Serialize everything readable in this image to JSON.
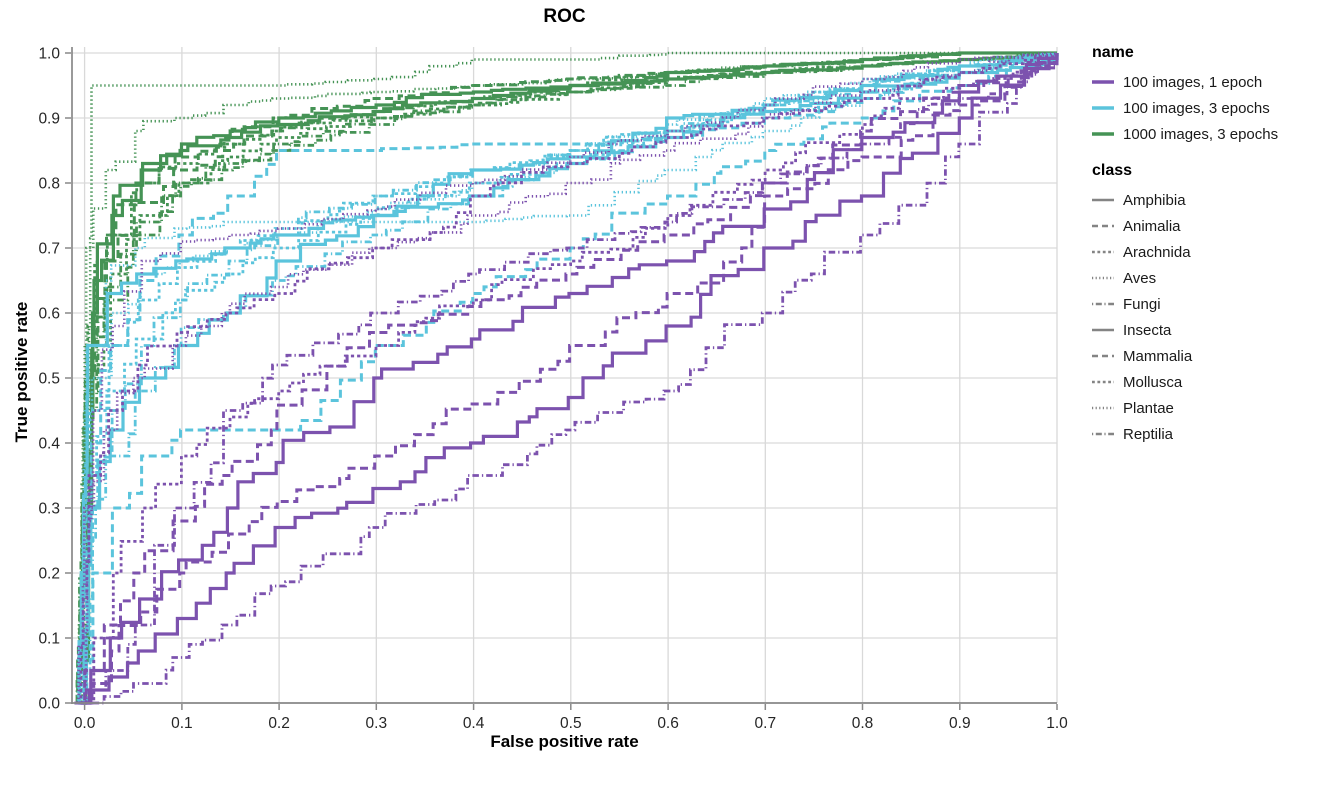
{
  "chart_data": {
    "type": "line",
    "title": "ROC",
    "xlabel": "False positive rate",
    "ylabel": "True positive rate",
    "xlim": [
      0,
      1
    ],
    "ylim": [
      0,
      1
    ],
    "xticks": [
      0.0,
      0.1,
      0.2,
      0.3,
      0.4,
      0.5,
      0.6,
      0.7,
      0.8,
      0.9,
      1.0
    ],
    "yticks": [
      0.0,
      0.1,
      0.2,
      0.3,
      0.4,
      0.5,
      0.6,
      0.7,
      0.8,
      0.9,
      1.0
    ],
    "grid": true,
    "grid_color": "#d9d9d9",
    "axis_color": "#888888",
    "legend": {
      "name_title": "name",
      "name_entries": [
        {
          "label": "100 images, 1 epoch",
          "color": "#7c52ae"
        },
        {
          "label": "100 images, 3 epochs",
          "color": "#5bc4dc"
        },
        {
          "label": "1000 images, 3 epochs",
          "color": "#459355"
        }
      ],
      "class_title": "class",
      "class_color": "#848484",
      "class_entries": [
        {
          "label": "Amphibia",
          "dash": "solid"
        },
        {
          "label": "Animalia",
          "dash": "dashed"
        },
        {
          "label": "Arachnida",
          "dash": "dash2"
        },
        {
          "label": "Aves",
          "dash": "dotted"
        },
        {
          "label": "Fungi",
          "dash": "dashdot"
        },
        {
          "label": "Insecta",
          "dash": "solid"
        },
        {
          "label": "Mammalia",
          "dash": "dashed"
        },
        {
          "label": "Mollusca",
          "dash": "dash2"
        },
        {
          "label": "Plantae",
          "dash": "dotted"
        },
        {
          "label": "Reptilia",
          "dash": "dashdot"
        }
      ]
    },
    "fpr_grid": [
      0,
      0.01,
      0.03,
      0.06,
      0.1,
      0.15,
      0.2,
      0.3,
      0.4,
      0.5,
      0.6,
      0.7,
      0.8,
      0.9,
      1
    ],
    "series": [
      {
        "name": "1000 images, 3 epochs",
        "class": "Amphibia",
        "color": "#459355",
        "dash": "solid",
        "tpr": [
          0,
          0.6,
          0.75,
          0.82,
          0.85,
          0.87,
          0.89,
          0.91,
          0.93,
          0.95,
          0.96,
          0.97,
          0.98,
          0.99,
          1
        ]
      },
      {
        "name": "1000 images, 3 epochs",
        "class": "Animalia",
        "color": "#459355",
        "dash": "dashed",
        "tpr": [
          0,
          0.55,
          0.72,
          0.8,
          0.84,
          0.87,
          0.9,
          0.93,
          0.95,
          0.96,
          0.97,
          0.98,
          0.99,
          1,
          1
        ]
      },
      {
        "name": "1000 images, 3 epochs",
        "class": "Arachnida",
        "color": "#459355",
        "dash": "dash2",
        "tpr": [
          0,
          0.58,
          0.72,
          0.8,
          0.83,
          0.86,
          0.88,
          0.91,
          0.93,
          0.95,
          0.97,
          0.98,
          0.99,
          1,
          1
        ]
      },
      {
        "name": "1000 images, 3 epochs",
        "class": "Aves",
        "color": "#459355",
        "dash": "dotted",
        "tpr": [
          0,
          0.7,
          0.82,
          0.88,
          0.9,
          0.92,
          0.93,
          0.94,
          0.95,
          0.96,
          0.97,
          0.98,
          0.99,
          1,
          1
        ]
      },
      {
        "name": "1000 images, 3 epochs",
        "class": "Fungi",
        "color": "#459355",
        "dash": "dashdot",
        "tpr": [
          0,
          0.45,
          0.62,
          0.72,
          0.78,
          0.82,
          0.85,
          0.89,
          0.92,
          0.94,
          0.96,
          0.97,
          0.98,
          0.99,
          1
        ]
      },
      {
        "name": "1000 images, 3 epochs",
        "class": "Insecta",
        "color": "#459355",
        "dash": "solid",
        "tpr": [
          0,
          0.65,
          0.78,
          0.83,
          0.86,
          0.88,
          0.9,
          0.92,
          0.94,
          0.95,
          0.97,
          0.98,
          0.99,
          1,
          1
        ]
      },
      {
        "name": "1000 images, 3 epochs",
        "class": "Mammalia",
        "color": "#459355",
        "dash": "dashed",
        "tpr": [
          0,
          0.5,
          0.68,
          0.77,
          0.82,
          0.85,
          0.88,
          0.91,
          0.93,
          0.95,
          0.96,
          0.98,
          0.99,
          1,
          1
        ]
      },
      {
        "name": "1000 images, 3 epochs",
        "class": "Mollusca",
        "color": "#459355",
        "dash": "dash2",
        "tpr": [
          0,
          0.52,
          0.66,
          0.75,
          0.8,
          0.84,
          0.87,
          0.9,
          0.92,
          0.94,
          0.96,
          0.97,
          0.99,
          1,
          1
        ]
      },
      {
        "name": "1000 images, 3 epochs",
        "class": "Plantae",
        "color": "#459355",
        "dash": "dotted",
        "tpr": [
          0,
          0.95,
          0.95,
          0.95,
          0.95,
          0.95,
          0.95,
          0.96,
          0.99,
          0.99,
          1,
          1,
          1,
          1,
          1
        ]
      },
      {
        "name": "1000 images, 3 epochs",
        "class": "Reptilia",
        "color": "#459355",
        "dash": "dashdot",
        "tpr": [
          0,
          0.48,
          0.64,
          0.74,
          0.8,
          0.83,
          0.86,
          0.9,
          0.92,
          0.94,
          0.95,
          0.97,
          0.98,
          0.99,
          1
        ]
      },
      {
        "name": "100 images, 3 epochs",
        "class": "Amphibia",
        "color": "#5bc4dc",
        "dash": "solid",
        "tpr": [
          0,
          0.3,
          0.42,
          0.5,
          0.55,
          0.6,
          0.68,
          0.75,
          0.82,
          0.84,
          0.9,
          0.92,
          0.95,
          0.98,
          1
        ]
      },
      {
        "name": "100 images, 3 epochs",
        "class": "Animalia",
        "color": "#5bc4dc",
        "dash": "dashed",
        "tpr": [
          0,
          0.4,
          0.55,
          0.65,
          0.72,
          0.78,
          0.85,
          0.85,
          0.86,
          0.86,
          0.87,
          0.9,
          0.93,
          0.97,
          1
        ]
      },
      {
        "name": "100 images, 3 epochs",
        "class": "Arachnida",
        "color": "#5bc4dc",
        "dash": "dash2",
        "tpr": [
          0,
          0.45,
          0.55,
          0.62,
          0.67,
          0.7,
          0.73,
          0.78,
          0.82,
          0.85,
          0.88,
          0.91,
          0.94,
          0.97,
          1
        ]
      },
      {
        "name": "100 images, 3 epochs",
        "class": "Aves",
        "color": "#5bc4dc",
        "dash": "dotted",
        "tpr": [
          0,
          0.55,
          0.65,
          0.7,
          0.73,
          0.74,
          0.74,
          0.74,
          0.74,
          0.75,
          0.82,
          0.88,
          0.93,
          0.97,
          1
        ]
      },
      {
        "name": "100 images, 3 epochs",
        "class": "Fungi",
        "color": "#5bc4dc",
        "dash": "dashdot",
        "tpr": [
          0,
          0.3,
          0.45,
          0.55,
          0.62,
          0.68,
          0.72,
          0.78,
          0.82,
          0.85,
          0.88,
          0.92,
          0.95,
          0.98,
          1
        ]
      },
      {
        "name": "100 images, 3 epochs",
        "class": "Insecta",
        "color": "#5bc4dc",
        "dash": "solid",
        "tpr": [
          0,
          0.55,
          0.63,
          0.66,
          0.68,
          0.7,
          0.72,
          0.75,
          0.78,
          0.83,
          0.87,
          0.91,
          0.94,
          0.97,
          1
        ]
      },
      {
        "name": "100 images, 3 epochs",
        "class": "Mammalia",
        "color": "#5bc4dc",
        "dash": "dashed",
        "tpr": [
          0,
          0.2,
          0.3,
          0.38,
          0.42,
          0.42,
          0.42,
          0.55,
          0.63,
          0.7,
          0.78,
          0.85,
          0.9,
          0.95,
          1
        ]
      },
      {
        "name": "100 images, 3 epochs",
        "class": "Mollusca",
        "color": "#5bc4dc",
        "dash": "dash2",
        "tpr": [
          0,
          0.35,
          0.48,
          0.56,
          0.62,
          0.66,
          0.7,
          0.75,
          0.8,
          0.84,
          0.88,
          0.92,
          0.95,
          0.98,
          1
        ]
      },
      {
        "name": "100 images, 3 epochs",
        "class": "Plantae",
        "color": "#5bc4dc",
        "dash": "dotted",
        "tpr": [
          0,
          0.5,
          0.6,
          0.66,
          0.68,
          0.7,
          0.72,
          0.76,
          0.8,
          0.85,
          0.89,
          0.93,
          0.96,
          0.98,
          1
        ]
      },
      {
        "name": "100 images, 3 epochs",
        "class": "Reptilia",
        "color": "#5bc4dc",
        "dash": "dashdot",
        "tpr": [
          0,
          0.25,
          0.38,
          0.48,
          0.55,
          0.6,
          0.65,
          0.72,
          0.78,
          0.83,
          0.88,
          0.92,
          0.95,
          0.98,
          1
        ]
      },
      {
        "name": "100 images, 1 epoch",
        "class": "Amphibia",
        "color": "#7c52ae",
        "dash": "solid",
        "tpr": [
          0,
          0.05,
          0.1,
          0.16,
          0.22,
          0.3,
          0.37,
          0.5,
          0.56,
          0.63,
          0.68,
          0.76,
          0.87,
          0.94,
          1
        ]
      },
      {
        "name": "100 images, 1 epoch",
        "class": "Animalia",
        "color": "#7c52ae",
        "dash": "dashed",
        "tpr": [
          0,
          0.05,
          0.12,
          0.2,
          0.28,
          0.35,
          0.42,
          0.57,
          0.61,
          0.66,
          0.72,
          0.8,
          0.88,
          0.95,
          1
        ]
      },
      {
        "name": "100 images, 1 epoch",
        "class": "Arachnida",
        "color": "#7c52ae",
        "dash": "dash2",
        "tpr": [
          0,
          0.35,
          0.45,
          0.52,
          0.57,
          0.6,
          0.63,
          0.7,
          0.78,
          0.83,
          0.87,
          0.9,
          0.93,
          0.97,
          1
        ]
      },
      {
        "name": "100 images, 1 epoch",
        "class": "Aves",
        "color": "#7c52ae",
        "dash": "dotted",
        "tpr": [
          0,
          0.45,
          0.58,
          0.68,
          0.71,
          0.72,
          0.73,
          0.76,
          0.8,
          0.84,
          0.88,
          0.92,
          0.96,
          0.99,
          1
        ]
      },
      {
        "name": "100 images, 1 epoch",
        "class": "Fungi",
        "color": "#7c52ae",
        "dash": "dashdot",
        "tpr": [
          0,
          0.02,
          0.05,
          0.12,
          0.3,
          0.45,
          0.52,
          0.6,
          0.66,
          0.7,
          0.74,
          0.8,
          0.86,
          0.93,
          1
        ]
      },
      {
        "name": "100 images, 1 epoch",
        "class": "Insecta",
        "color": "#7c52ae",
        "dash": "solid",
        "tpr": [
          0,
          0.02,
          0.04,
          0.08,
          0.13,
          0.2,
          0.27,
          0.33,
          0.4,
          0.47,
          0.58,
          0.7,
          0.78,
          0.9,
          1
        ]
      },
      {
        "name": "100 images, 1 epoch",
        "class": "Mammalia",
        "color": "#7c52ae",
        "dash": "dashed",
        "tpr": [
          0,
          0.03,
          0.08,
          0.14,
          0.2,
          0.26,
          0.31,
          0.38,
          0.46,
          0.55,
          0.63,
          0.78,
          0.84,
          0.92,
          1
        ]
      },
      {
        "name": "100 images, 1 epoch",
        "class": "Mollusca",
        "color": "#7c52ae",
        "dash": "dash2",
        "tpr": [
          0,
          0.1,
          0.2,
          0.3,
          0.38,
          0.44,
          0.48,
          0.55,
          0.62,
          0.68,
          0.75,
          0.82,
          0.89,
          0.95,
          1
        ]
      },
      {
        "name": "100 images, 1 epoch",
        "class": "Plantae",
        "color": "#7c52ae",
        "dash": "dotted",
        "tpr": [
          0,
          0.3,
          0.42,
          0.5,
          0.55,
          0.6,
          0.64,
          0.7,
          0.75,
          0.8,
          0.85,
          0.9,
          0.94,
          0.97,
          1
        ]
      },
      {
        "name": "100 images, 1 epoch",
        "class": "Reptilia",
        "color": "#7c52ae",
        "dash": "dashdot",
        "tpr": [
          0,
          0,
          0.01,
          0.03,
          0.07,
          0.12,
          0.18,
          0.27,
          0.35,
          0.42,
          0.48,
          0.6,
          0.72,
          0.86,
          1
        ]
      }
    ]
  }
}
